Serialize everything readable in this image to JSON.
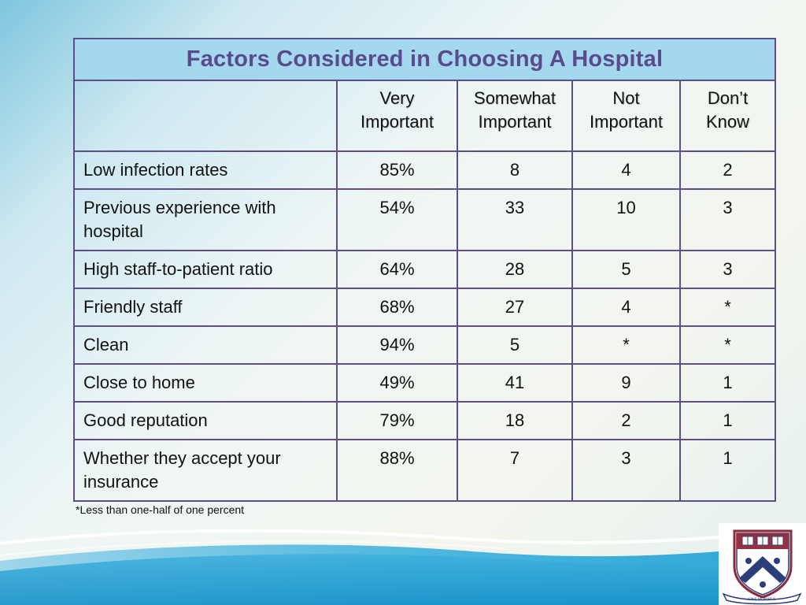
{
  "table": {
    "title": "Factors Considered in Choosing A Hospital",
    "columns": [
      "",
      "Very\nImportant",
      "Somewhat\nImportant",
      "Not\nImportant",
      "Don’t\nKnow"
    ],
    "rows": [
      {
        "factor": "Low infection rates",
        "very": "85%",
        "somewhat": "8",
        "not": "4",
        "dont_know": "2"
      },
      {
        "factor": "Previous experience with hospital",
        "very": "54%",
        "somewhat": "33",
        "not": "10",
        "dont_know": "3"
      },
      {
        "factor": "High staff-to-patient ratio",
        "very": "64%",
        "somewhat": "28",
        "not": "5",
        "dont_know": "3"
      },
      {
        "factor": "Friendly staff",
        "very": "68%",
        "somewhat": "27",
        "not": "4",
        "dont_know": "*"
      },
      {
        "factor": "Clean",
        "very": "94%",
        "somewhat": "5",
        "not": "*",
        "dont_know": "*"
      },
      {
        "factor": "Close to home",
        "very": "49%",
        "somewhat": "41",
        "not": "9",
        "dont_know": "1"
      },
      {
        "factor": "Good reputation",
        "very": "79%",
        "somewhat": "18",
        "not": "2",
        "dont_know": "1"
      },
      {
        "factor": "Whether they accept your insurance",
        "very": "88%",
        "somewhat": "7",
        "not": "3",
        "dont_know": "1"
      }
    ]
  },
  "footnote": "*Less than one-half of one percent",
  "logo": {
    "icon": "university-shield-crest-icon",
    "motto": "LEGES SINE MORIBUS VANAE"
  },
  "colors": {
    "title_text": "#5a4a8e",
    "title_background": "#a4d8ee",
    "table_border": "#5e4e88",
    "background_blue": "#1f9fd0"
  }
}
